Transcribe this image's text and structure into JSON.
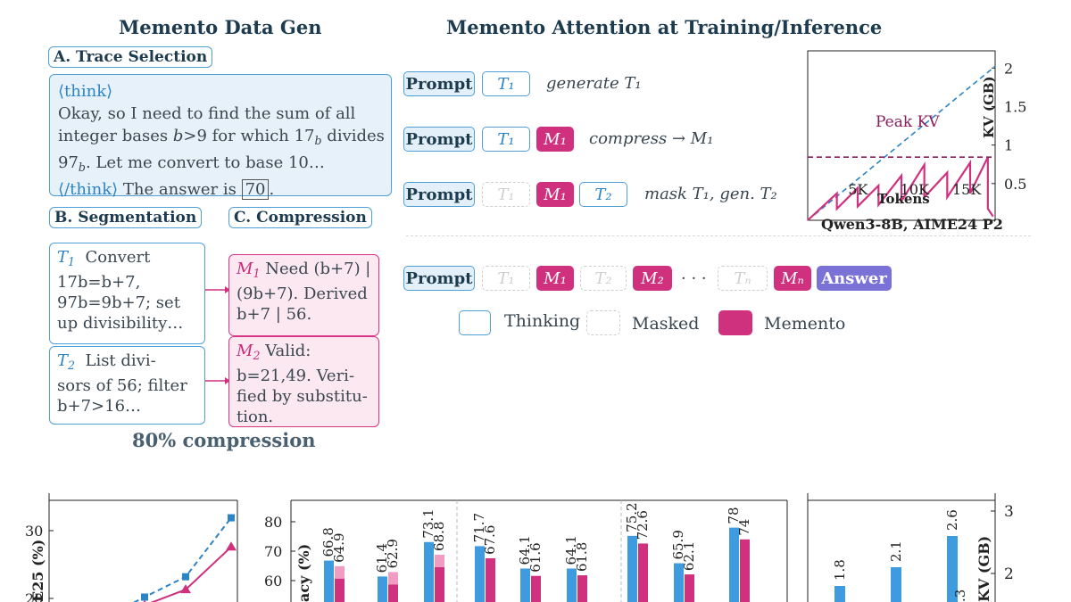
{
  "left": {
    "title": "Memento Data Gen",
    "trace": {
      "tag": "A. Trace Selection",
      "think_open": "⟨think⟩",
      "text_1": "Okay, so I need to find the sum of all",
      "text_2a": "integer bases ",
      "text_2b": "b",
      "text_2c": ">9 for which 17",
      "text_2d": "b",
      "text_2e": " divides",
      "text_3a": "97",
      "text_3b": "b",
      "text_3c": ". Let me convert to base 10…",
      "think_close": "⟨/think⟩",
      "answer_pre": " The answer is ",
      "answer": "70",
      "answer_post": "."
    },
    "segmentation": {
      "tag": "B. Segmentation",
      "t1_label": "T",
      "t1_sub": "1",
      "t1_lines": [
        "Convert",
        "17b=b+7,",
        "97b=9b+7; set",
        "up divisibility…"
      ],
      "t2_label": "T",
      "t2_sub": "2",
      "t2_lines": [
        "List divi-",
        "sors of 56; filter",
        "b+7>16…"
      ]
    },
    "compression": {
      "tag": "C. Compression",
      "m1_label": "M",
      "m1_sub": "1",
      "m1_lines": [
        "Need (b+7) |",
        "(9b+7). Derived",
        "b+7 | 56."
      ],
      "m2_label": "M",
      "m2_sub": "2",
      "m2_lines": [
        "Valid:",
        "b=21,49. Veri-",
        "fied by substitu-",
        "tion."
      ]
    },
    "footer": "80% compression"
  },
  "right": {
    "title": "Memento Attention at Training/Inference",
    "rows": [
      {
        "op": "generate T₁"
      },
      {
        "op": "compress → M₁"
      },
      {
        "op": "mask T₁, gen. T₂"
      }
    ],
    "tokens": {
      "prompt": "Prompt",
      "t1": "T₁",
      "t2": "T₂",
      "tn": "Tₙ",
      "m1": "M₁",
      "m2": "M₂",
      "mn": "Mₙ",
      "dots": "· · ·",
      "answer": "Answer"
    },
    "legend": {
      "thinking": "Thinking",
      "masked": "Masked",
      "memento": "Memento"
    }
  },
  "kv_chart": {
    "peak_label": "Peak KV",
    "xlabel": "Tokens",
    "ylabel": "KV (GB)",
    "caption": "Qwen3-8B, AIME24 P2",
    "x_ticks": [
      "5K",
      "10K",
      "15K"
    ],
    "y_ticks": [
      "2",
      "1.5",
      "1",
      "0.5"
    ]
  },
  "chart_data": [
    {
      "type": "line",
      "title": "",
      "xlabel": "Tokens",
      "ylabel": "KV (GB)",
      "xlim": [
        0,
        18000
      ],
      "ylim": [
        0,
        2.2
      ],
      "series": [
        {
          "name": "",
          "style": "dashed",
          "color": "#2b84c6",
          "x": [
            0,
            18000
          ],
          "y": [
            0,
            2.0
          ]
        },
        {
          "name": "",
          "style": "solid",
          "color": "#d0317e",
          "x": [
            0,
            2800,
            2800,
            4800,
            4800,
            6800,
            6800,
            9000,
            9000,
            11200,
            11200,
            13400,
            13400,
            15600,
            15600,
            17300,
            17300,
            17800
          ],
          "y": [
            0,
            0.35,
            0.15,
            0.42,
            0.18,
            0.45,
            0.2,
            0.58,
            0.25,
            0.72,
            0.3,
            0.62,
            0.3,
            0.75,
            0.35,
            0.82,
            0.15,
            0.05
          ]
        },
        {
          "name": "Peak KV",
          "style": "dashed",
          "color": "#8a1e5c",
          "x": [
            0,
            18000
          ],
          "y": [
            0.82,
            0.82
          ]
        }
      ],
      "x_ticks": [
        "5K",
        "10K",
        "15K"
      ],
      "y_ticks": [
        "2",
        "1.5",
        "1",
        "0.5"
      ]
    },
    {
      "type": "line",
      "xlabel": "",
      "ylabel": "E25 (%)",
      "y_ticks": [
        "30",
        "20"
      ],
      "series": [
        {
          "name": "",
          "style": "dashed",
          "color": "#2b84c6",
          "x": [
            1,
            2,
            3
          ],
          "y": [
            20.2,
            23.2,
            31.9
          ]
        },
        {
          "name": "",
          "style": "solid",
          "color": "#d0317e",
          "x": [
            1,
            2,
            3
          ],
          "y": [
            19.0,
            21.3,
            27.6
          ]
        }
      ]
    },
    {
      "type": "bar",
      "ylabel": "acy (%)",
      "y_ticks": [
        "80",
        "70",
        "60"
      ],
      "ylim": [
        50,
        85
      ],
      "groups": [
        {
          "blue": 66.8,
          "pink": 64.9,
          "pink_light": true
        },
        {
          "blue": 61.4,
          "pink": 62.9,
          "pink_light": true
        },
        {
          "blue": 73.1,
          "pink": 68.8,
          "pink_light": true
        },
        {
          "blue": 71.7,
          "pink": 67.6,
          "pink_light": false
        },
        {
          "blue": 64.1,
          "pink": 61.6,
          "pink_light": false
        },
        {
          "blue": 64.1,
          "pink": 61.8,
          "pink_light": false
        },
        {
          "blue": 75.2,
          "pink": 72.6,
          "pink_light": false
        },
        {
          "blue": 65.9,
          "pink": 62.1,
          "pink_light": false
        },
        {
          "blue": 78,
          "pink": 74,
          "pink_light": false
        }
      ],
      "blue_labels": [
        "66.8",
        "61.4",
        "73.1",
        "71.7",
        "64.1",
        "64.1",
        "75.2",
        "65.9",
        "78"
      ],
      "pink_labels": [
        "64.9",
        "62.9",
        "68.8",
        "67.6",
        "61.6",
        "61.8",
        "72.6",
        "62.1",
        "74"
      ]
    },
    {
      "type": "bar",
      "ylabel": "KV (GB)",
      "y_ticks": [
        "3",
        "2"
      ],
      "ylim": [
        1.2,
        3.2
      ],
      "values": [
        1.8,
        2.1,
        2.6
      ],
      "labels": [
        "1.8",
        "2.1",
        "2.6"
      ],
      "partial_label": ".3"
    }
  ]
}
